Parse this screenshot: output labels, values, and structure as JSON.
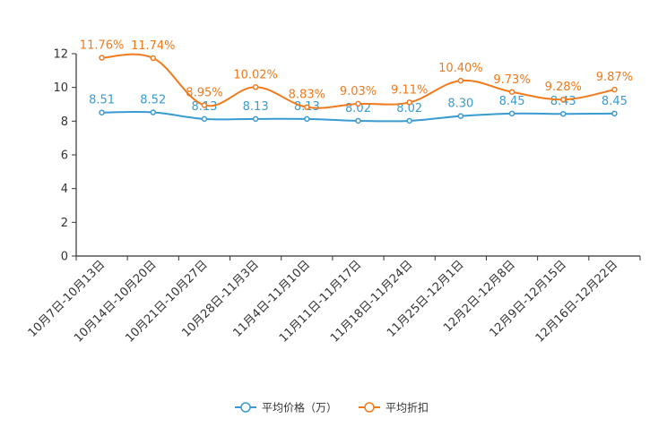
{
  "chart_data": {
    "type": "line",
    "categories": [
      "10月7日-10月13日",
      "10月14日-10月20日",
      "10月21日-10月27日",
      "10月28日-11月3日",
      "11月4日-11月10日",
      "11月11日-11月17日",
      "11月18日-11月24日",
      "11月25日-12月1日",
      "12月2日-12月8日",
      "12月9日-12月15日",
      "12月16日-12月22日"
    ],
    "series": [
      {
        "name": "平均价格（万）",
        "color": "#3a9bd0",
        "values": [
          8.51,
          8.52,
          8.13,
          8.13,
          8.13,
          8.02,
          8.02,
          8.3,
          8.45,
          8.43,
          8.45
        ],
        "labels": [
          "8.51",
          "8.52",
          "8.13",
          "8.13",
          "8.13",
          "8.02",
          "8.02",
          "8.30",
          "8.45",
          "8.43",
          "8.45"
        ]
      },
      {
        "name": "平均折扣",
        "color": "#f07a1c",
        "values": [
          11.76,
          11.74,
          8.95,
          10.02,
          8.83,
          9.03,
          9.11,
          10.4,
          9.73,
          9.28,
          9.87
        ],
        "labels": [
          "11.76%",
          "11.74%",
          "8.95%",
          "10.02%",
          "8.83%",
          "9.03%",
          "9.11%",
          "10.40%",
          "9.73%",
          "9.28%",
          "9.87%"
        ]
      }
    ],
    "ylim": [
      0,
      12
    ],
    "yticks": [
      "0",
      "2",
      "4",
      "6",
      "8",
      "10",
      "12"
    ],
    "legend_position": "bottom-center",
    "grid": false,
    "title": "",
    "xlabel": "",
    "ylabel": ""
  }
}
